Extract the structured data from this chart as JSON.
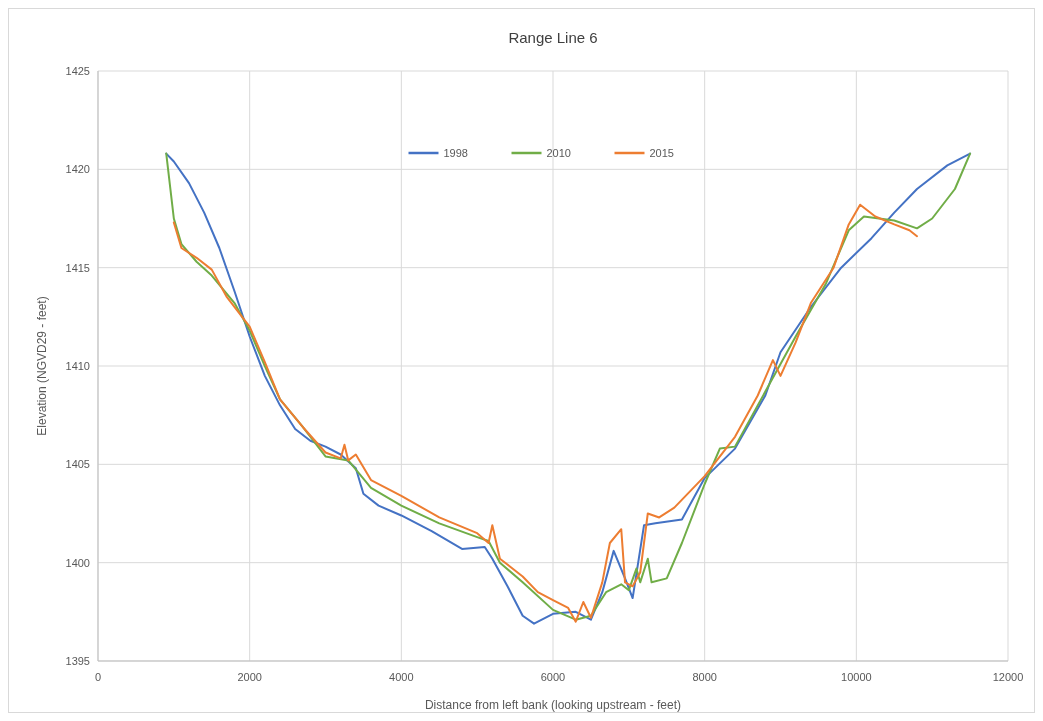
{
  "chart_data": {
    "type": "line",
    "title": "Range Line 6",
    "xlabel": "Distance from left bank (looking upstream - feet)",
    "ylabel": "Elevation (NGVD29 - feet)",
    "xlim": [
      0,
      12000
    ],
    "xticks": [
      0,
      2000,
      4000,
      6000,
      8000,
      10000,
      12000
    ],
    "ylim": [
      1395,
      1425
    ],
    "yticks": [
      1395,
      1400,
      1405,
      1410,
      1415,
      1420,
      1425
    ],
    "grid": true,
    "legend": "top",
    "marker": "none",
    "line_style": "solid",
    "series": [
      {
        "name": "1998",
        "color": "#4472c4",
        "x": [
          900,
          1000,
          1200,
          1400,
          1600,
          1800,
          2000,
          2200,
          2400,
          2600,
          2800,
          3000,
          3200,
          3400,
          3500,
          3700,
          4000,
          4400,
          4800,
          5100,
          5200,
          5400,
          5600,
          5750,
          6000,
          6300,
          6500,
          6650,
          6800,
          6950,
          7050,
          7200,
          7350,
          7700,
          8000,
          8400,
          8800,
          9000,
          9400,
          9800,
          10200,
          10500,
          10800,
          11200,
          11500
        ],
        "values": [
          1420.8,
          1420.4,
          1419.3,
          1417.8,
          1416,
          1413.8,
          1411.5,
          1409.5,
          1408,
          1406.8,
          1406.2,
          1405.9,
          1405.5,
          1404.8,
          1403.5,
          1402.9,
          1402.4,
          1401.6,
          1400.7,
          1400.8,
          1400.2,
          1398.8,
          1397.3,
          1396.9,
          1397.4,
          1397.5,
          1397.1,
          1398.5,
          1400.6,
          1399.2,
          1398.2,
          1401.9,
          1402,
          1402.2,
          1404.3,
          1405.8,
          1408.5,
          1410.7,
          1413,
          1415,
          1416.5,
          1417.8,
          1419,
          1420.2,
          1420.8
        ]
      },
      {
        "name": "2010",
        "color": "#70ad47",
        "x": [
          900,
          1000,
          1100,
          1300,
          1500,
          1800,
          2000,
          2200,
          2400,
          2700,
          3000,
          3300,
          3450,
          3600,
          4000,
          4500,
          5000,
          5150,
          5300,
          5600,
          6000,
          6300,
          6500,
          6700,
          6900,
          7000,
          7100,
          7150,
          7250,
          7300,
          7500,
          7700,
          8000,
          8200,
          8400,
          8800,
          9200,
          9600,
          9900,
          10100,
          10500,
          10800,
          11000,
          11300,
          11500
        ],
        "values": [
          1420.8,
          1417.5,
          1416.2,
          1415.3,
          1414.6,
          1413.2,
          1411.8,
          1410,
          1408.3,
          1406.9,
          1405.4,
          1405.2,
          1404.5,
          1403.8,
          1402.9,
          1402,
          1401.3,
          1401.1,
          1400,
          1399,
          1397.6,
          1397.1,
          1397.3,
          1398.5,
          1398.9,
          1398.6,
          1399.7,
          1399,
          1400.2,
          1399,
          1399.2,
          1401,
          1404,
          1405.8,
          1405.9,
          1408.7,
          1411.5,
          1414.2,
          1416.9,
          1417.6,
          1417.4,
          1417,
          1417.5,
          1419,
          1420.8
        ]
      },
      {
        "name": "2015",
        "color": "#ed7d31",
        "x": [
          1000,
          1100,
          1300,
          1500,
          1700,
          1900,
          2000,
          2200,
          2400,
          2700,
          3000,
          3200,
          3250,
          3300,
          3400,
          3600,
          4000,
          4500,
          5000,
          5150,
          5200,
          5300,
          5600,
          5800,
          6000,
          6200,
          6300,
          6400,
          6500,
          6650,
          6750,
          6900,
          6950,
          7050,
          7150,
          7250,
          7400,
          7600,
          8000,
          8400,
          8700,
          8900,
          9000,
          9200,
          9400,
          9700,
          9900,
          10050,
          10250,
          10500,
          10700,
          10800
        ],
        "values": [
          1417.3,
          1416,
          1415.5,
          1414.9,
          1413.5,
          1412.5,
          1412,
          1410.2,
          1408.3,
          1406.9,
          1405.6,
          1405.3,
          1406,
          1405.2,
          1405.5,
          1404.2,
          1403.4,
          1402.3,
          1401.5,
          1401,
          1401.9,
          1400.2,
          1399.3,
          1398.5,
          1398.1,
          1397.7,
          1397,
          1398,
          1397.2,
          1399,
          1401,
          1401.7,
          1399,
          1398.8,
          1399.5,
          1402.5,
          1402.3,
          1402.8,
          1404.4,
          1406.4,
          1408.5,
          1410.3,
          1409.5,
          1411.2,
          1413.2,
          1415,
          1417.2,
          1418.2,
          1417.6,
          1417.2,
          1416.9,
          1416.6
        ]
      }
    ]
  }
}
